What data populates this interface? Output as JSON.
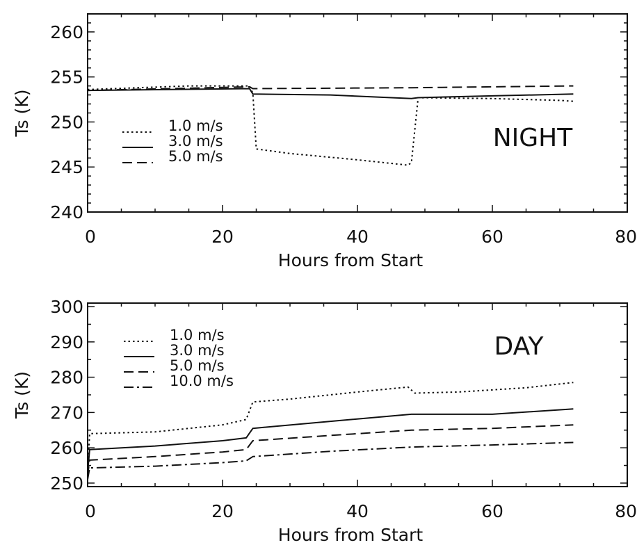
{
  "chart_data": [
    {
      "type": "line",
      "panel_label": "NIGHT",
      "xlabel": "Hours from Start",
      "ylabel": "Ts (K)",
      "xlim": [
        0,
        80
      ],
      "ylim": [
        240,
        262
      ],
      "x_ticks": [
        "0",
        "20",
        "40",
        "60",
        "80"
      ],
      "y_ticks": [
        "240",
        "245",
        "250",
        "255",
        "260"
      ],
      "grid": false,
      "legend_position": "middle-left",
      "series": [
        {
          "name": "1.0 m/s",
          "style": "dotted",
          "x": [
            0,
            15,
            24,
            24.5,
            25,
            30,
            40,
            47.5,
            48,
            49,
            60,
            70,
            72
          ],
          "y": [
            253.6,
            254.0,
            254.0,
            253.2,
            247.0,
            246.5,
            245.8,
            245.2,
            245.5,
            252.7,
            252.6,
            252.4,
            252.3
          ]
        },
        {
          "name": "3.0 m/s",
          "style": "solid",
          "x": [
            0,
            24,
            24.5,
            36,
            48,
            49,
            60,
            72
          ],
          "y": [
            253.5,
            253.7,
            253.1,
            253.0,
            252.6,
            252.7,
            252.9,
            253.1
          ]
        },
        {
          "name": "5.0 m/s",
          "style": "dashed",
          "x": [
            0,
            24,
            24.5,
            48,
            72
          ],
          "y": [
            253.5,
            253.9,
            253.7,
            253.8,
            254.0
          ]
        }
      ]
    },
    {
      "type": "line",
      "panel_label": "DAY",
      "xlabel": "Hours from Start",
      "ylabel": "Ts (K)",
      "xlim": [
        0,
        80
      ],
      "ylim": [
        249,
        301
      ],
      "x_ticks": [
        "0",
        "20",
        "40",
        "60",
        "80"
      ],
      "y_ticks": [
        "250",
        "260",
        "270",
        "280",
        "290",
        "300"
      ],
      "grid": false,
      "legend_position": "top-left",
      "series": [
        {
          "name": "1.0 m/s",
          "style": "dotted",
          "x": [
            0,
            0.3,
            10,
            20,
            23.5,
            24.5,
            30,
            40,
            47.5,
            48.5,
            55,
            65,
            72
          ],
          "y": [
            253,
            264,
            264.5,
            266.5,
            268,
            273,
            273.8,
            275.8,
            277.2,
            275.5,
            275.8,
            277,
            278.5
          ]
        },
        {
          "name": "3.0 m/s",
          "style": "solid",
          "x": [
            0,
            0.3,
            10,
            20,
            23.5,
            24.5,
            36,
            48,
            60,
            72
          ],
          "y": [
            253,
            259.5,
            260.5,
            262,
            262.8,
            265.5,
            267.5,
            269.5,
            269.5,
            271
          ]
        },
        {
          "name": "5.0 m/s",
          "style": "dashed",
          "x": [
            0,
            0.3,
            10,
            20,
            23.5,
            24.5,
            36,
            48,
            60,
            72
          ],
          "y": [
            252,
            256.5,
            257.5,
            258.8,
            259.5,
            262,
            263.5,
            265,
            265.5,
            266.5
          ]
        },
        {
          "name": "10.0 m/s",
          "style": "dashdot",
          "x": [
            0,
            0.3,
            10,
            20,
            23.5,
            24.5,
            36,
            48,
            60,
            72
          ],
          "y": [
            251,
            254.3,
            254.8,
            255.8,
            256.3,
            257.5,
            259,
            260.2,
            260.8,
            261.5
          ]
        }
      ]
    }
  ]
}
